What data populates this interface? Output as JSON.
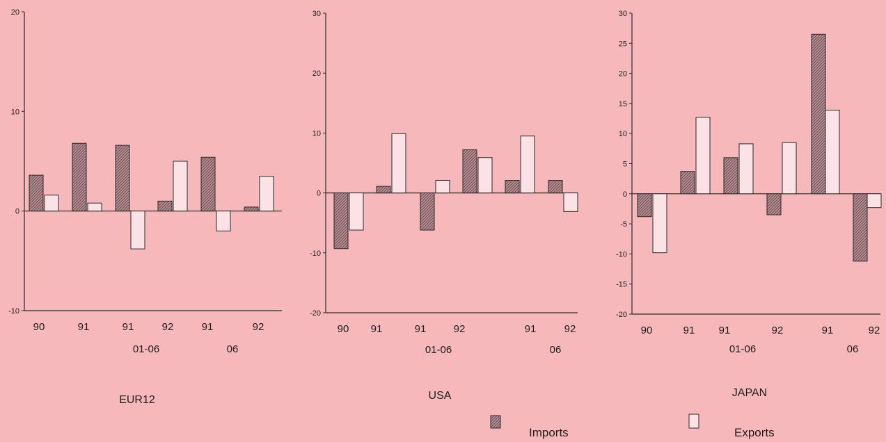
{
  "colors": {
    "background": "#f6b8bb",
    "imports_fill": "#b98f93",
    "exports_fill": "#fbe3e5",
    "stroke": "#2a2a2a"
  },
  "legend": {
    "imports": "Imports",
    "exports": "Exports"
  },
  "chart_data": [
    {
      "type": "bar",
      "title": "EUR12",
      "xlabel": "",
      "ylabel": "",
      "ylim": [
        -10,
        20
      ],
      "yticks": [
        -10,
        0,
        10,
        20
      ],
      "categories": [
        "90",
        "91",
        "91",
        "92",
        "91",
        "92"
      ],
      "category_groups": [
        {
          "label": "01-06",
          "under_category": 2
        },
        {
          "label": "06",
          "under_category": 4
        }
      ],
      "series": [
        {
          "name": "Imports",
          "values": [
            3.6,
            6.8,
            6.6,
            1.0,
            5.4,
            0.4
          ]
        },
        {
          "name": "Exports",
          "values": [
            1.6,
            0.8,
            -3.8,
            5.0,
            -2.0,
            3.5
          ]
        }
      ],
      "grid": false,
      "legend_position": "bottom-right"
    },
    {
      "type": "bar",
      "title": "USA",
      "xlabel": "",
      "ylabel": "",
      "ylim": [
        -20,
        30
      ],
      "yticks": [
        -20,
        -10,
        0,
        10,
        20,
        30
      ],
      "categories": [
        "90",
        "91",
        "91",
        "92",
        "91",
        "92"
      ],
      "category_groups": [
        {
          "label": "01-06",
          "under_category": 2
        },
        {
          "label": "06",
          "under_category": 4
        }
      ],
      "series": [
        {
          "name": "Imports",
          "values": [
            -9.3,
            1.1,
            -6.2,
            7.2,
            2.1,
            2.1
          ]
        },
        {
          "name": "Exports",
          "values": [
            -6.2,
            9.9,
            2.1,
            5.9,
            9.5,
            -3.1
          ]
        }
      ],
      "grid": false,
      "legend_position": "bottom-right"
    },
    {
      "type": "bar",
      "title": "JAPAN",
      "xlabel": "",
      "ylabel": "",
      "ylim": [
        -20,
        30
      ],
      "yticks": [
        -20,
        -15,
        -10,
        -5,
        0,
        5,
        10,
        15,
        20,
        25,
        30
      ],
      "categories": [
        "90",
        "91",
        "91",
        "92",
        "91",
        "92"
      ],
      "category_groups": [
        {
          "label": "01-06",
          "under_category": 2
        },
        {
          "label": "06",
          "under_category": 4
        }
      ],
      "series": [
        {
          "name": "Imports",
          "values": [
            -3.8,
            3.7,
            6.0,
            -3.5,
            26.5,
            -11.2
          ]
        },
        {
          "name": "Exports",
          "values": [
            -9.8,
            12.7,
            8.3,
            8.5,
            13.9,
            -2.3
          ]
        }
      ],
      "grid": false,
      "legend_position": "bottom-right"
    }
  ]
}
